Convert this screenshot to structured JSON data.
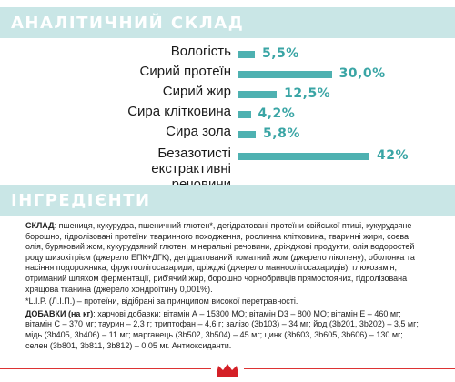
{
  "analysis_title": "АНАЛІТИЧНИЙ СКЛАД",
  "ingredients_title": "ІНГРЕДІЄНТИ",
  "analysis": [
    {
      "label": "Вологість",
      "value": "5,5%",
      "percent": 5.5
    },
    {
      "label": "Сирий протеїн",
      "value": "30,0%",
      "percent": 30.0
    },
    {
      "label": "Сирий жир",
      "value": "12,5%",
      "percent": 12.5
    },
    {
      "label": "Сира клітковина",
      "value": "4,2%",
      "percent": 4.2
    },
    {
      "label": "Сира зола",
      "value": "5,8%",
      "percent": 5.8
    },
    {
      "label": "Безазотисті екстрактивні речовини",
      "value": "42%",
      "percent": 42
    }
  ],
  "composition": {
    "heading": "СКЛАД",
    "text": ": пшениця, кукурудза, пшеничний глютен*, дегідратовані протеїни свійської птиці, кукурудзяне борошно, гідролізовані протеїни тваринного походження, рослинна клітковина, тваринні жири, соєва олія, буряковий жом, кукурудзяний глютен, мінеральні речовини, дріжджові продукти, олія водоростей роду шизохітрієм (джерело ЕПК+ДГК), дегідратований томатний жом (джерело лікопену), оболонка та насіння подорожника, фруктоолігосахариди, дріжджі (джерело манноолігосахаридів), глюкозамін, отриманий шляхом ферментації, риб'ячий жир, борошно чорнобривців прямостоячих, гідролізована хрящова тканина (джерело хондроїтину 0,001%).",
    "note": "*L.I.P. (Л.І.П.) – протеїни, відібрані за принципом високої перетравності."
  },
  "additives": {
    "heading": "ДОБАВКИ (на кг)",
    "text": ": харчові добавки: вітамін А – 15300 МО; вітамін D3 – 800 МО; вітамін Е – 460 мг; вітамін С – 370 мг; таурин – 2,3 г; триптофан – 4,6 г; залізо (3b103) – 34 мг; йод (3b201, 3b202) – 3,5 мг; мідь (3b405, 3b406) – 11 мг; марганець (3b502, 3b504) – 45 мг; цинк (3b603, 3b605, 3b606) – 130 мг; селен (3b801, 3b811, 3b812) – 0,05 мг. Антиоксиданти."
  },
  "colors": {
    "band": "#c9e6e6",
    "bar": "#4eb1b1",
    "value_text": "#3aa5a5",
    "logo": "#d42027"
  },
  "logo_icon": "crown-icon"
}
